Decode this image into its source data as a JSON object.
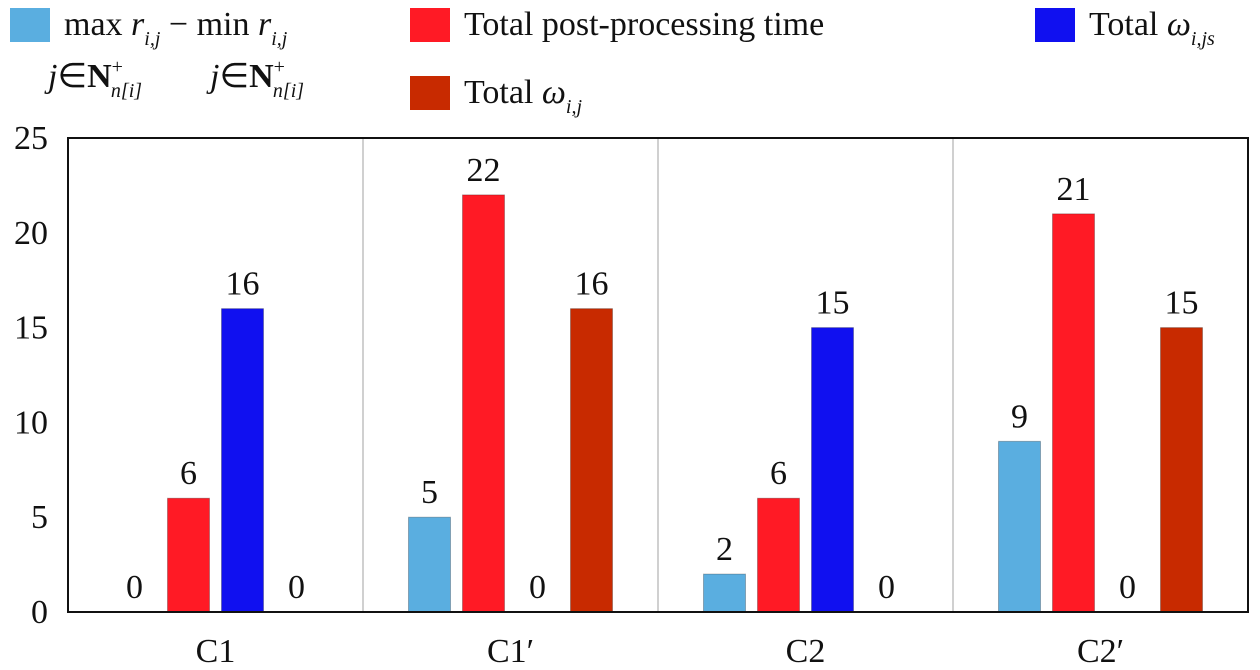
{
  "chart_data": {
    "type": "bar",
    "categories": [
      "C1",
      "C1′",
      "C2",
      "C2′"
    ],
    "series": [
      {
        "name": "max r_{i,j} − min r_{i,j} (j∈N⁺_{n[i]})",
        "color": "#5aaee0",
        "values": [
          0,
          5,
          2,
          9
        ]
      },
      {
        "name": "Total post-processing time",
        "color": "#ff1a25",
        "values": [
          6,
          22,
          6,
          21
        ]
      },
      {
        "name": "Total ω_{i,js}",
        "color": "#1010f0",
        "values": [
          16,
          0,
          15,
          0
        ]
      },
      {
        "name": "Total ω_{i,j}",
        "color": "#c82a00",
        "values": [
          0,
          16,
          0,
          15
        ]
      }
    ],
    "y_ticks": [
      "0",
      "5",
      "10",
      "15",
      "20",
      "25"
    ],
    "ylim": [
      0,
      25
    ],
    "grid": "vertical separators between categories",
    "legend_position": "top",
    "data_labels": true
  },
  "legend": {
    "item1": {
      "max": "max",
      "minus": " − ",
      "min": "min",
      "r": "r",
      "sub": "i,j",
      "j": "j",
      "in": "∈",
      "N": "N",
      "sup": "+",
      "nsub": "n[i]"
    },
    "item2": {
      "text": "Total post-processing time"
    },
    "item3": {
      "total": "Total ",
      "omega": "ω",
      "sub": "i,js"
    },
    "item4": {
      "total": "Total ",
      "omega": "ω",
      "sub": "i,j"
    }
  }
}
